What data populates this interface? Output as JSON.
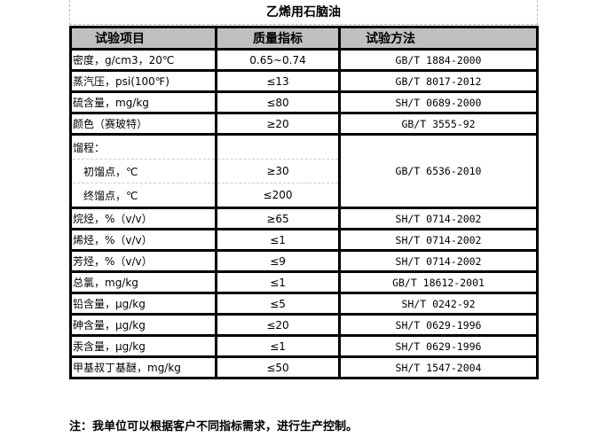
{
  "title": "乙烯用石脑油",
  "headers": [
    "试验项目",
    "质量指标",
    "试验方法"
  ],
  "rows": [
    {
      "item": "密度，g/cm3，20℃",
      "spec": "0.65~0.74",
      "method": "GB/T 1884-2000"
    },
    {
      "item": "蒸汽压，psi(100℉)",
      "spec": "≤13",
      "method": "GB/T 8017-2012"
    },
    {
      "item": "硫含量，mg/kg",
      "spec": "≤80",
      "method": "SH/T 0689-2000"
    },
    {
      "item": "颜色（赛玻特）",
      "spec": "≥20",
      "method": "GB/T 3555-92"
    }
  ],
  "distillation": {
    "label": "馏程：",
    "initial": "初馏点，℃",
    "initial_spec": "≥30",
    "final": "终馏点，℃",
    "final_spec": "≤200",
    "method": "GB/T 6536-2010"
  },
  "rows2": [
    {
      "item": "烷烃，%（v/v）",
      "spec": "≥65",
      "method": "SH/T 0714-2002"
    },
    {
      "item": "烯烃，%（v/v）",
      "spec": "≤1",
      "method": "SH/T 0714-2002"
    },
    {
      "item": "芳烃，%（v/v）",
      "spec": "≤9",
      "method": "SH/T 0714-2002"
    },
    {
      "item": "总氯，mg/kg",
      "spec": "≤1",
      "method": "GB/T 18612-2001"
    },
    {
      "item": "铅含量，μg/kg",
      "spec": "≤5",
      "method": "SH/T 0242-92"
    },
    {
      "item": "砷含量，μg/kg",
      "spec": "≤20",
      "method": "SH/T 0629-1996"
    },
    {
      "item": "汞含量，μg/kg",
      "spec": "≤1",
      "method": "SH/T 0629-1996"
    },
    {
      "item": "甲基叔丁基醚，mg/kg",
      "spec": "≤50",
      "method": "SH/T 1547-2004"
    }
  ],
  "note": "注：我单位可以根据客户不同指标需求，进行生产控制。"
}
